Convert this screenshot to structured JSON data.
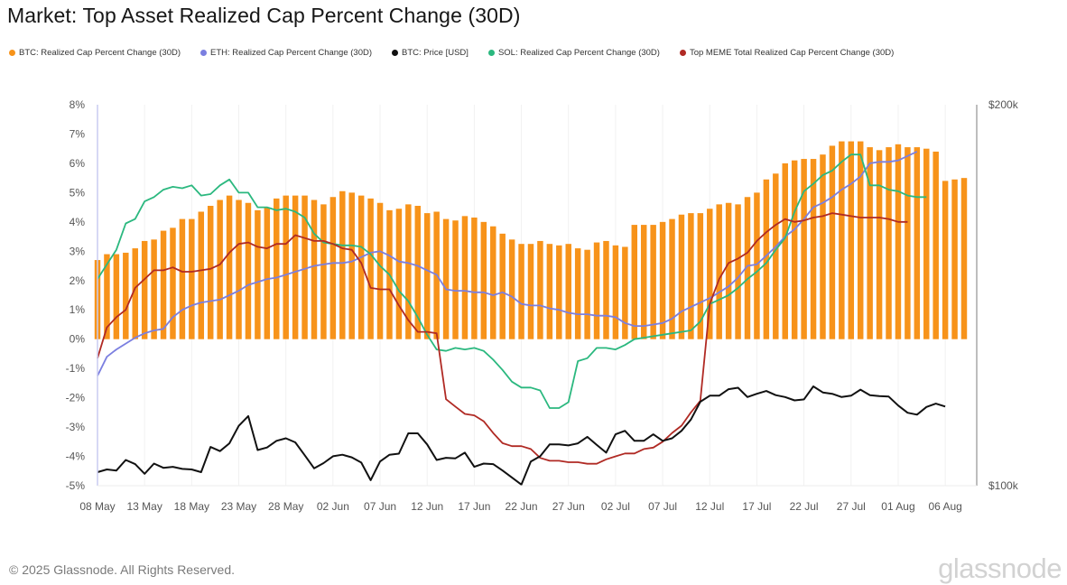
{
  "title": "Market: Top Asset Realized Cap Percent Change (30D)",
  "footer": {
    "copyright": "© 2025 Glassnode. All Rights Reserved.",
    "logo": "glassnode"
  },
  "colors": {
    "btc": "#f7931a",
    "eth": "#7b7fe0",
    "price": "#111111",
    "sol": "#2bb87f",
    "meme": "#b02a24",
    "axis": "#a8a8a8",
    "left_axis": "#c9cbf0"
  },
  "chart_data": {
    "type": "bar+line",
    "title": "Market: Top Asset Realized Cap Percent Change (30D)",
    "legend": [
      {
        "key": "btc",
        "label": "BTC: Realized Cap Percent Change (30D)"
      },
      {
        "key": "eth",
        "label": "ETH: Realized Cap Percent Change (30D)"
      },
      {
        "key": "price",
        "label": "BTC: Price [USD]"
      },
      {
        "key": "sol",
        "label": "SOL: Realized Cap Percent Change (30D)"
      },
      {
        "key": "meme",
        "label": "Top MEME Total Realized Cap Percent Change (30D)"
      }
    ],
    "legend_position": "top-left",
    "x_start": "2025-05-08",
    "x_end": "2025-08-06",
    "x_ticks": [
      "08 May",
      "13 May",
      "18 May",
      "23 May",
      "28 May",
      "02 Jun",
      "07 Jun",
      "12 Jun",
      "17 Jun",
      "22 Jun",
      "27 Jun",
      "02 Jul",
      "07 Jul",
      "12 Jul",
      "17 Jul",
      "22 Jul",
      "27 Jul",
      "01 Aug",
      "06 Aug"
    ],
    "y_left": {
      "label": "Realized Cap Percent Change (30D)",
      "range": [
        -5,
        8
      ],
      "ticks": [
        "8%",
        "7%",
        "6%",
        "5%",
        "4%",
        "3%",
        "2%",
        "1%",
        "0%",
        "-1%",
        "-2%",
        "-3%",
        "-4%",
        "-5%"
      ]
    },
    "y_right": {
      "label": "BTC Price [USD]",
      "range": [
        100000,
        200000
      ],
      "ticks": [
        "$200k",
        "$100k"
      ]
    },
    "series": [
      {
        "key": "btc",
        "name": "BTC: Realized Cap Percent Change (30D)",
        "kind": "bar",
        "axis": "left",
        "values": [
          2.7,
          2.9,
          2.9,
          2.95,
          3.1,
          3.35,
          3.4,
          3.7,
          3.8,
          4.1,
          4.1,
          4.35,
          4.55,
          4.75,
          4.9,
          4.75,
          4.65,
          4.4,
          4.5,
          4.8,
          4.9,
          4.9,
          4.9,
          4.75,
          4.6,
          4.85,
          5.05,
          5.0,
          4.9,
          4.8,
          4.65,
          4.4,
          4.45,
          4.6,
          4.55,
          4.3,
          4.35,
          4.1,
          4.05,
          4.2,
          4.15,
          4.0,
          3.85,
          3.6,
          3.4,
          3.25,
          3.25,
          3.35,
          3.25,
          3.2,
          3.25,
          3.1,
          3.05,
          3.3,
          3.35,
          3.2,
          3.15,
          3.9,
          3.9,
          3.9,
          4.0,
          4.1,
          4.25,
          4.3,
          4.3,
          4.45,
          4.6,
          4.65,
          4.6,
          4.85,
          5.0,
          5.45,
          5.65,
          6.0,
          6.1,
          6.15,
          6.15,
          6.3,
          6.6,
          6.75,
          6.75,
          6.75,
          6.55,
          6.45,
          6.55,
          6.65,
          6.55,
          6.55,
          6.5,
          6.4,
          5.4,
          5.45,
          5.5
        ]
      },
      {
        "key": "eth",
        "name": "ETH: Realized Cap Percent Change (30D)",
        "kind": "line",
        "axis": "left",
        "values": [
          -1.25,
          -0.6,
          -0.35,
          -0.15,
          0.05,
          0.2,
          0.3,
          0.35,
          0.75,
          1.0,
          1.15,
          1.25,
          1.3,
          1.35,
          1.5,
          1.65,
          1.85,
          1.95,
          2.05,
          2.1,
          2.2,
          2.3,
          2.4,
          2.5,
          2.55,
          2.6,
          2.6,
          2.65,
          2.8,
          2.95,
          3.0,
          2.85,
          2.65,
          2.6,
          2.5,
          2.35,
          2.2,
          1.7,
          1.65,
          1.65,
          1.6,
          1.6,
          1.5,
          1.6,
          1.45,
          1.2,
          1.15,
          1.15,
          1.05,
          1.0,
          0.9,
          0.85,
          0.85,
          0.8,
          0.8,
          0.75,
          0.55,
          0.45,
          0.45,
          0.5,
          0.55,
          0.7,
          0.95,
          1.1,
          1.25,
          1.4,
          1.6,
          1.8,
          2.1,
          2.5,
          2.55,
          2.85,
          3.15,
          3.5,
          3.75,
          4.1,
          4.5,
          4.65,
          4.85,
          5.1,
          5.3,
          5.55,
          6.0,
          6.05,
          6.05,
          6.1,
          6.25,
          6.4
        ]
      },
      {
        "key": "sol",
        "name": "SOL: Realized Cap Percent Change (30D)",
        "kind": "line",
        "axis": "left",
        "values": [
          2.05,
          2.55,
          3.05,
          3.95,
          4.1,
          4.7,
          4.85,
          5.1,
          5.2,
          5.15,
          5.25,
          4.9,
          4.95,
          5.25,
          5.45,
          5.0,
          5.0,
          4.5,
          4.5,
          4.4,
          4.45,
          4.35,
          4.15,
          3.6,
          3.3,
          3.25,
          3.2,
          3.2,
          3.15,
          2.9,
          2.5,
          2.2,
          1.65,
          1.3,
          0.75,
          0.15,
          -0.35,
          -0.4,
          -0.3,
          -0.35,
          -0.3,
          -0.4,
          -0.7,
          -1.05,
          -1.45,
          -1.65,
          -1.65,
          -1.75,
          -2.35,
          -2.35,
          -2.15,
          -0.75,
          -0.65,
          -0.3,
          -0.3,
          -0.35,
          -0.2,
          0.0,
          0.05,
          0.1,
          0.15,
          0.2,
          0.25,
          0.3,
          0.6,
          1.2,
          1.35,
          1.5,
          1.75,
          2.05,
          2.3,
          2.6,
          3.05,
          3.45,
          4.35,
          5.05,
          5.3,
          5.6,
          5.75,
          6.05,
          6.3,
          6.3,
          5.25,
          5.25,
          5.1,
          5.05,
          4.9,
          4.85,
          4.85
        ]
      },
      {
        "key": "meme",
        "name": "Top MEME Total Realized Cap Percent Change (30D)",
        "kind": "line",
        "axis": "left",
        "values": [
          -0.65,
          0.4,
          0.75,
          1.0,
          1.75,
          2.05,
          2.35,
          2.35,
          2.45,
          2.3,
          2.3,
          2.35,
          2.4,
          2.55,
          2.95,
          3.25,
          3.3,
          3.15,
          3.1,
          3.25,
          3.25,
          3.55,
          3.45,
          3.35,
          3.35,
          3.25,
          3.1,
          3.05,
          2.6,
          1.75,
          1.7,
          1.7,
          1.15,
          0.65,
          0.25,
          0.25,
          0.2,
          -2.05,
          -2.3,
          -2.55,
          -2.6,
          -2.8,
          -3.2,
          -3.55,
          -3.65,
          -3.65,
          -3.75,
          -4.05,
          -4.15,
          -4.15,
          -4.2,
          -4.2,
          -4.25,
          -4.25,
          -4.1,
          -4.0,
          -3.9,
          -3.9,
          -3.75,
          -3.7,
          -3.5,
          -3.2,
          -2.95,
          -2.5,
          -2.1,
          1.2,
          2.05,
          2.6,
          2.75,
          2.95,
          3.35,
          3.65,
          3.9,
          4.1,
          4.0,
          4.05,
          4.15,
          4.2,
          4.3,
          4.25,
          4.2,
          4.15,
          4.15,
          4.15,
          4.1,
          4.0,
          4.0
        ]
      },
      {
        "key": "price",
        "name": "BTC: Price [USD]",
        "kind": "line",
        "axis": "right",
        "values": [
          102500,
          103000,
          102800,
          104800,
          104000,
          102200,
          104100,
          103300,
          103500,
          103100,
          103000,
          102500,
          107300,
          106500,
          108000,
          111500,
          113500,
          106700,
          107200,
          108500,
          109000,
          108200,
          105700,
          103200,
          104200,
          105500,
          105800,
          105300,
          104300,
          101000,
          104500,
          105800,
          106000,
          110000,
          110000,
          107800,
          104800,
          105200,
          105100,
          106200,
          103500,
          104100,
          104000,
          102800,
          101500,
          100200,
          104500,
          105500,
          107800,
          107800,
          107600,
          108000,
          109300,
          107700,
          106200,
          109800,
          110500,
          108500,
          108500,
          109800,
          108500,
          109000,
          110500,
          112800,
          116500,
          117800,
          117800,
          119200,
          119500,
          117500,
          118200,
          118800,
          117900,
          117500,
          116800,
          117000,
          119800,
          118500,
          118200,
          117500,
          117800,
          119100,
          117900,
          117700,
          117600,
          115700,
          114200,
          113800,
          115400,
          116100,
          115500
        ]
      }
    ]
  }
}
